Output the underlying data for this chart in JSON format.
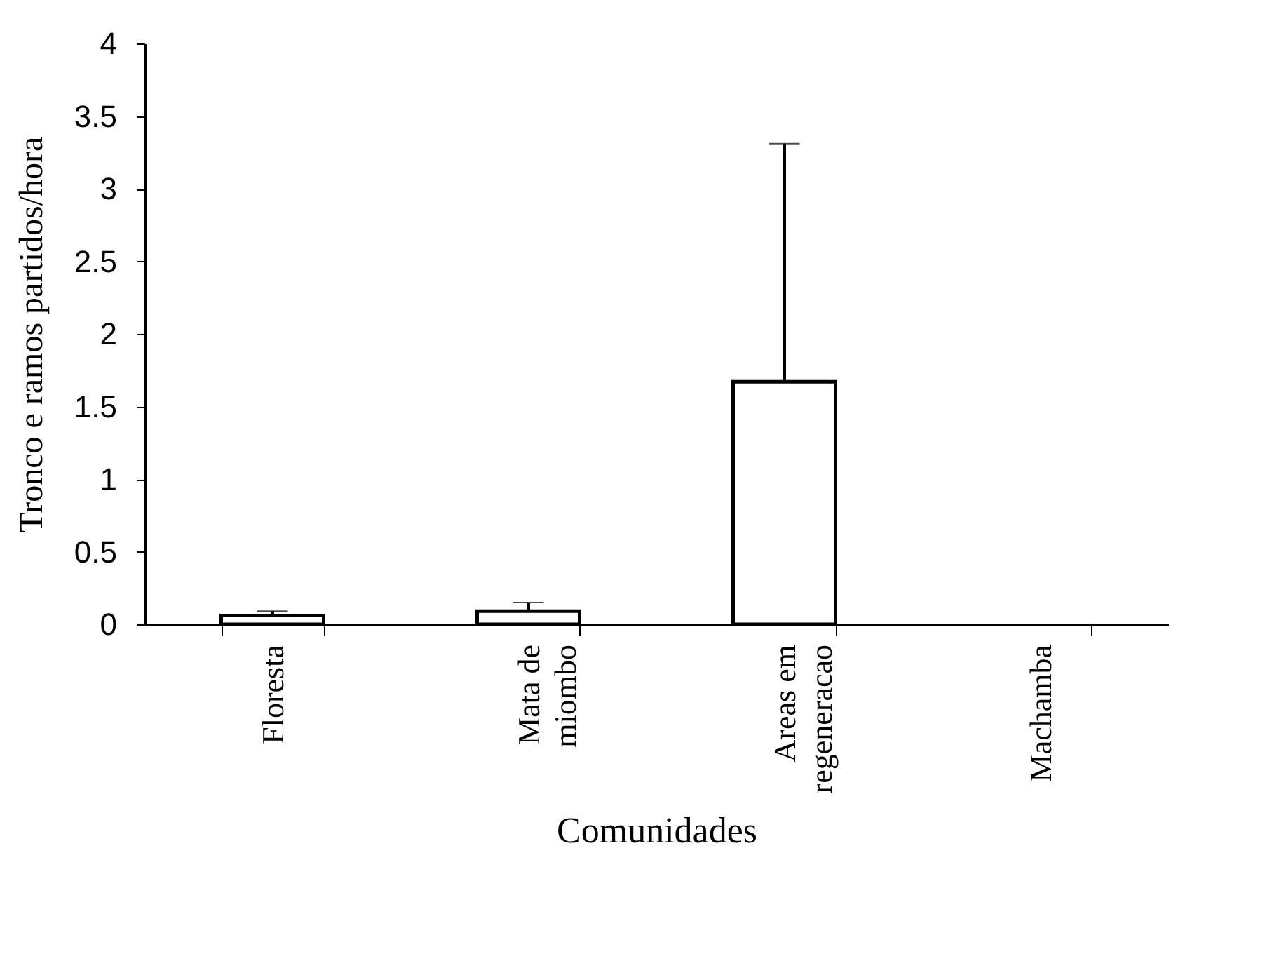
{
  "chart_data": {
    "type": "bar",
    "xlabel": "Comunidades",
    "ylabel": "Tronco e ramos partidos/hora",
    "categories": [
      "Floresta",
      "Mata de miombo",
      "Areas em regeneracao",
      "Machamba"
    ],
    "values": [
      0.06,
      0.09,
      1.67,
      0
    ],
    "errors": [
      [
        0.06,
        0.09
      ],
      [
        0.09,
        0.15
      ],
      [
        1.67,
        3.31
      ],
      null
    ],
    "color": "#ffffff",
    "ylim": [
      0,
      4
    ],
    "yticks": [
      0,
      0.5,
      1,
      1.5,
      2,
      2.5,
      3,
      3.5,
      4
    ],
    "grid": false
  }
}
